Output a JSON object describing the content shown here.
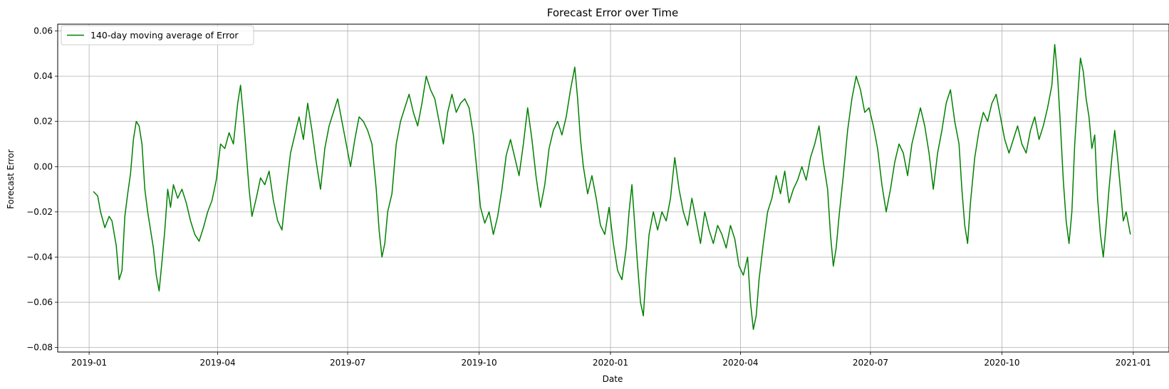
{
  "chart_data": {
    "type": "line",
    "title": "Forecast Error over Time",
    "xlabel": "Date",
    "ylabel": "Forecast Error",
    "xlim": [
      "2018-12-10",
      "2021-01-26"
    ],
    "ylim": [
      -0.082,
      0.063
    ],
    "grid": true,
    "legend_position": "top-left",
    "x_ticks": [
      "2019-01",
      "2019-04",
      "2019-07",
      "2019-10",
      "2020-01",
      "2020-04",
      "2020-07",
      "2020-10",
      "2021-01"
    ],
    "y_ticks": [
      {
        "value": -0.08,
        "label": "−0.08"
      },
      {
        "value": -0.06,
        "label": "−0.06"
      },
      {
        "value": -0.04,
        "label": "−0.04"
      },
      {
        "value": -0.02,
        "label": "−0.02"
      },
      {
        "value": 0.0,
        "label": "0.00"
      },
      {
        "value": 0.02,
        "label": "0.02"
      },
      {
        "value": 0.04,
        "label": "0.04"
      },
      {
        "value": 0.06,
        "label": "0.06"
      }
    ],
    "series": [
      {
        "name": "140-day moving average of Error",
        "color": "#008000",
        "points": [
          [
            "2019-01-04",
            -0.011
          ],
          [
            "2019-01-07",
            -0.013
          ],
          [
            "2019-01-09",
            -0.02
          ],
          [
            "2019-01-12",
            -0.027
          ],
          [
            "2019-01-15",
            -0.022
          ],
          [
            "2019-01-17",
            -0.024
          ],
          [
            "2019-01-20",
            -0.035
          ],
          [
            "2019-01-22",
            -0.05
          ],
          [
            "2019-01-24",
            -0.046
          ],
          [
            "2019-01-26",
            -0.022
          ],
          [
            "2019-01-28",
            -0.012
          ],
          [
            "2019-01-30",
            -0.003
          ],
          [
            "2019-02-01",
            0.012
          ],
          [
            "2019-02-03",
            0.02
          ],
          [
            "2019-02-05",
            0.018
          ],
          [
            "2019-02-07",
            0.01
          ],
          [
            "2019-02-09",
            -0.01
          ],
          [
            "2019-02-11",
            -0.02
          ],
          [
            "2019-02-13",
            -0.028
          ],
          [
            "2019-02-15",
            -0.036
          ],
          [
            "2019-02-17",
            -0.048
          ],
          [
            "2019-02-19",
            -0.055
          ],
          [
            "2019-02-21",
            -0.042
          ],
          [
            "2019-02-23",
            -0.028
          ],
          [
            "2019-02-25",
            -0.01
          ],
          [
            "2019-02-27",
            -0.018
          ],
          [
            "2019-03-01",
            -0.008
          ],
          [
            "2019-03-04",
            -0.014
          ],
          [
            "2019-03-07",
            -0.01
          ],
          [
            "2019-03-10",
            -0.016
          ],
          [
            "2019-03-13",
            -0.024
          ],
          [
            "2019-03-16",
            -0.03
          ],
          [
            "2019-03-19",
            -0.033
          ],
          [
            "2019-03-22",
            -0.027
          ],
          [
            "2019-03-25",
            -0.02
          ],
          [
            "2019-03-28",
            -0.015
          ],
          [
            "2019-03-31",
            -0.006
          ],
          [
            "2019-04-03",
            0.01
          ],
          [
            "2019-04-06",
            0.008
          ],
          [
            "2019-04-09",
            0.015
          ],
          [
            "2019-04-12",
            0.01
          ],
          [
            "2019-04-15",
            0.028
          ],
          [
            "2019-04-17",
            0.036
          ],
          [
            "2019-04-19",
            0.022
          ],
          [
            "2019-04-21",
            0.006
          ],
          [
            "2019-04-23",
            -0.01
          ],
          [
            "2019-04-25",
            -0.022
          ],
          [
            "2019-04-28",
            -0.014
          ],
          [
            "2019-05-01",
            -0.005
          ],
          [
            "2019-05-04",
            -0.008
          ],
          [
            "2019-05-07",
            -0.002
          ],
          [
            "2019-05-10",
            -0.015
          ],
          [
            "2019-05-13",
            -0.024
          ],
          [
            "2019-05-16",
            -0.028
          ],
          [
            "2019-05-19",
            -0.01
          ],
          [
            "2019-05-22",
            0.006
          ],
          [
            "2019-05-25",
            0.014
          ],
          [
            "2019-05-28",
            0.022
          ],
          [
            "2019-05-31",
            0.012
          ],
          [
            "2019-06-03",
            0.028
          ],
          [
            "2019-06-06",
            0.016
          ],
          [
            "2019-06-09",
            0.002
          ],
          [
            "2019-06-12",
            -0.01
          ],
          [
            "2019-06-15",
            0.008
          ],
          [
            "2019-06-18",
            0.018
          ],
          [
            "2019-06-21",
            0.024
          ],
          [
            "2019-06-24",
            0.03
          ],
          [
            "2019-06-27",
            0.02
          ],
          [
            "2019-06-30",
            0.01
          ],
          [
            "2019-07-03",
            0.0
          ],
          [
            "2019-07-06",
            0.012
          ],
          [
            "2019-07-09",
            0.022
          ],
          [
            "2019-07-12",
            0.02
          ],
          [
            "2019-07-15",
            0.016
          ],
          [
            "2019-07-18",
            0.01
          ],
          [
            "2019-07-21",
            -0.01
          ],
          [
            "2019-07-23",
            -0.028
          ],
          [
            "2019-07-25",
            -0.04
          ],
          [
            "2019-07-27",
            -0.034
          ],
          [
            "2019-07-29",
            -0.02
          ],
          [
            "2019-08-01",
            -0.012
          ],
          [
            "2019-08-04",
            0.01
          ],
          [
            "2019-08-07",
            0.02
          ],
          [
            "2019-08-10",
            0.026
          ],
          [
            "2019-08-13",
            0.032
          ],
          [
            "2019-08-16",
            0.024
          ],
          [
            "2019-08-19",
            0.018
          ],
          [
            "2019-08-22",
            0.028
          ],
          [
            "2019-08-25",
            0.04
          ],
          [
            "2019-08-28",
            0.034
          ],
          [
            "2019-08-31",
            0.03
          ],
          [
            "2019-09-03",
            0.02
          ],
          [
            "2019-09-06",
            0.01
          ],
          [
            "2019-09-09",
            0.024
          ],
          [
            "2019-09-12",
            0.032
          ],
          [
            "2019-09-15",
            0.024
          ],
          [
            "2019-09-18",
            0.028
          ],
          [
            "2019-09-21",
            0.03
          ],
          [
            "2019-09-24",
            0.026
          ],
          [
            "2019-09-27",
            0.014
          ],
          [
            "2019-09-30",
            -0.005
          ],
          [
            "2019-10-02",
            -0.018
          ],
          [
            "2019-10-05",
            -0.025
          ],
          [
            "2019-10-08",
            -0.02
          ],
          [
            "2019-10-11",
            -0.03
          ],
          [
            "2019-10-14",
            -0.022
          ],
          [
            "2019-10-17",
            -0.01
          ],
          [
            "2019-10-20",
            0.005
          ],
          [
            "2019-10-23",
            0.012
          ],
          [
            "2019-10-26",
            0.004
          ],
          [
            "2019-10-29",
            -0.004
          ],
          [
            "2019-11-01",
            0.01
          ],
          [
            "2019-11-04",
            0.026
          ],
          [
            "2019-11-07",
            0.012
          ],
          [
            "2019-11-10",
            -0.005
          ],
          [
            "2019-11-13",
            -0.018
          ],
          [
            "2019-11-16",
            -0.008
          ],
          [
            "2019-11-19",
            0.008
          ],
          [
            "2019-11-22",
            0.016
          ],
          [
            "2019-11-25",
            0.02
          ],
          [
            "2019-11-28",
            0.014
          ],
          [
            "2019-12-01",
            0.022
          ],
          [
            "2019-12-04",
            0.034
          ],
          [
            "2019-12-07",
            0.044
          ],
          [
            "2019-12-09",
            0.03
          ],
          [
            "2019-12-11",
            0.012
          ],
          [
            "2019-12-13",
            0.0
          ],
          [
            "2019-12-16",
            -0.012
          ],
          [
            "2019-12-19",
            -0.004
          ],
          [
            "2019-12-22",
            -0.014
          ],
          [
            "2019-12-25",
            -0.026
          ],
          [
            "2019-12-28",
            -0.03
          ],
          [
            "2019-12-31",
            -0.018
          ],
          [
            "2020-01-03",
            -0.034
          ],
          [
            "2020-01-06",
            -0.046
          ],
          [
            "2020-01-09",
            -0.05
          ],
          [
            "2020-01-12",
            -0.036
          ],
          [
            "2020-01-14",
            -0.02
          ],
          [
            "2020-01-16",
            -0.008
          ],
          [
            "2020-01-18",
            -0.026
          ],
          [
            "2020-01-20",
            -0.044
          ],
          [
            "2020-01-22",
            -0.06
          ],
          [
            "2020-01-24",
            -0.066
          ],
          [
            "2020-01-26",
            -0.046
          ],
          [
            "2020-01-28",
            -0.03
          ],
          [
            "2020-01-31",
            -0.02
          ],
          [
            "2020-02-03",
            -0.028
          ],
          [
            "2020-02-06",
            -0.02
          ],
          [
            "2020-02-09",
            -0.024
          ],
          [
            "2020-02-12",
            -0.014
          ],
          [
            "2020-02-15",
            0.004
          ],
          [
            "2020-02-18",
            -0.01
          ],
          [
            "2020-02-21",
            -0.02
          ],
          [
            "2020-02-24",
            -0.026
          ],
          [
            "2020-02-27",
            -0.014
          ],
          [
            "2020-03-01",
            -0.024
          ],
          [
            "2020-03-04",
            -0.034
          ],
          [
            "2020-03-07",
            -0.02
          ],
          [
            "2020-03-10",
            -0.028
          ],
          [
            "2020-03-13",
            -0.034
          ],
          [
            "2020-03-16",
            -0.026
          ],
          [
            "2020-03-19",
            -0.03
          ],
          [
            "2020-03-22",
            -0.036
          ],
          [
            "2020-03-25",
            -0.026
          ],
          [
            "2020-03-28",
            -0.032
          ],
          [
            "2020-03-31",
            -0.044
          ],
          [
            "2020-04-03",
            -0.048
          ],
          [
            "2020-04-06",
            -0.04
          ],
          [
            "2020-04-08",
            -0.06
          ],
          [
            "2020-04-10",
            -0.072
          ],
          [
            "2020-04-12",
            -0.066
          ],
          [
            "2020-04-14",
            -0.05
          ],
          [
            "2020-04-17",
            -0.034
          ],
          [
            "2020-04-20",
            -0.02
          ],
          [
            "2020-04-23",
            -0.014
          ],
          [
            "2020-04-26",
            -0.004
          ],
          [
            "2020-04-29",
            -0.012
          ],
          [
            "2020-05-02",
            -0.002
          ],
          [
            "2020-05-05",
            -0.016
          ],
          [
            "2020-05-08",
            -0.01
          ],
          [
            "2020-05-11",
            -0.006
          ],
          [
            "2020-05-14",
            0.0
          ],
          [
            "2020-05-17",
            -0.006
          ],
          [
            "2020-05-20",
            0.004
          ],
          [
            "2020-05-23",
            0.01
          ],
          [
            "2020-05-26",
            0.018
          ],
          [
            "2020-05-29",
            0.002
          ],
          [
            "2020-06-01",
            -0.01
          ],
          [
            "2020-06-03",
            -0.03
          ],
          [
            "2020-06-05",
            -0.044
          ],
          [
            "2020-06-07",
            -0.036
          ],
          [
            "2020-06-09",
            -0.022
          ],
          [
            "2020-06-12",
            -0.004
          ],
          [
            "2020-06-15",
            0.016
          ],
          [
            "2020-06-18",
            0.03
          ],
          [
            "2020-06-21",
            0.04
          ],
          [
            "2020-06-24",
            0.034
          ],
          [
            "2020-06-27",
            0.024
          ],
          [
            "2020-06-30",
            0.026
          ],
          [
            "2020-07-03",
            0.018
          ],
          [
            "2020-07-06",
            0.008
          ],
          [
            "2020-07-09",
            -0.008
          ],
          [
            "2020-07-12",
            -0.02
          ],
          [
            "2020-07-15",
            -0.01
          ],
          [
            "2020-07-18",
            0.002
          ],
          [
            "2020-07-21",
            0.01
          ],
          [
            "2020-07-24",
            0.006
          ],
          [
            "2020-07-27",
            -0.004
          ],
          [
            "2020-07-30",
            0.01
          ],
          [
            "2020-08-02",
            0.018
          ],
          [
            "2020-08-05",
            0.026
          ],
          [
            "2020-08-08",
            0.018
          ],
          [
            "2020-08-11",
            0.006
          ],
          [
            "2020-08-14",
            -0.01
          ],
          [
            "2020-08-17",
            0.006
          ],
          [
            "2020-08-20",
            0.016
          ],
          [
            "2020-08-23",
            0.028
          ],
          [
            "2020-08-26",
            0.034
          ],
          [
            "2020-08-29",
            0.02
          ],
          [
            "2020-09-01",
            0.01
          ],
          [
            "2020-09-03",
            -0.01
          ],
          [
            "2020-09-05",
            -0.026
          ],
          [
            "2020-09-07",
            -0.034
          ],
          [
            "2020-09-09",
            -0.016
          ],
          [
            "2020-09-12",
            0.004
          ],
          [
            "2020-09-15",
            0.016
          ],
          [
            "2020-09-18",
            0.024
          ],
          [
            "2020-09-21",
            0.02
          ],
          [
            "2020-09-24",
            0.028
          ],
          [
            "2020-09-27",
            0.032
          ],
          [
            "2020-09-30",
            0.022
          ],
          [
            "2020-10-03",
            0.012
          ],
          [
            "2020-10-06",
            0.006
          ],
          [
            "2020-10-09",
            0.012
          ],
          [
            "2020-10-12",
            0.018
          ],
          [
            "2020-10-15",
            0.01
          ],
          [
            "2020-10-18",
            0.006
          ],
          [
            "2020-10-21",
            0.016
          ],
          [
            "2020-10-24",
            0.022
          ],
          [
            "2020-10-27",
            0.012
          ],
          [
            "2020-10-30",
            0.018
          ],
          [
            "2020-11-02",
            0.026
          ],
          [
            "2020-11-05",
            0.036
          ],
          [
            "2020-11-07",
            0.054
          ],
          [
            "2020-11-09",
            0.04
          ],
          [
            "2020-11-11",
            0.018
          ],
          [
            "2020-11-13",
            -0.006
          ],
          [
            "2020-11-15",
            -0.024
          ],
          [
            "2020-11-17",
            -0.034
          ],
          [
            "2020-11-19",
            -0.02
          ],
          [
            "2020-11-21",
            0.01
          ],
          [
            "2020-11-23",
            0.03
          ],
          [
            "2020-11-25",
            0.048
          ],
          [
            "2020-11-27",
            0.042
          ],
          [
            "2020-11-29",
            0.03
          ],
          [
            "2020-12-01",
            0.022
          ],
          [
            "2020-12-03",
            0.008
          ],
          [
            "2020-12-05",
            0.014
          ],
          [
            "2020-12-07",
            -0.014
          ],
          [
            "2020-12-09",
            -0.03
          ],
          [
            "2020-12-11",
            -0.04
          ],
          [
            "2020-12-13",
            -0.026
          ],
          [
            "2020-12-15",
            -0.01
          ],
          [
            "2020-12-17",
            0.004
          ],
          [
            "2020-12-19",
            0.016
          ],
          [
            "2020-12-21",
            0.004
          ],
          [
            "2020-12-23",
            -0.01
          ],
          [
            "2020-12-25",
            -0.024
          ],
          [
            "2020-12-27",
            -0.02
          ],
          [
            "2020-12-30",
            -0.03
          ]
        ]
      }
    ]
  }
}
